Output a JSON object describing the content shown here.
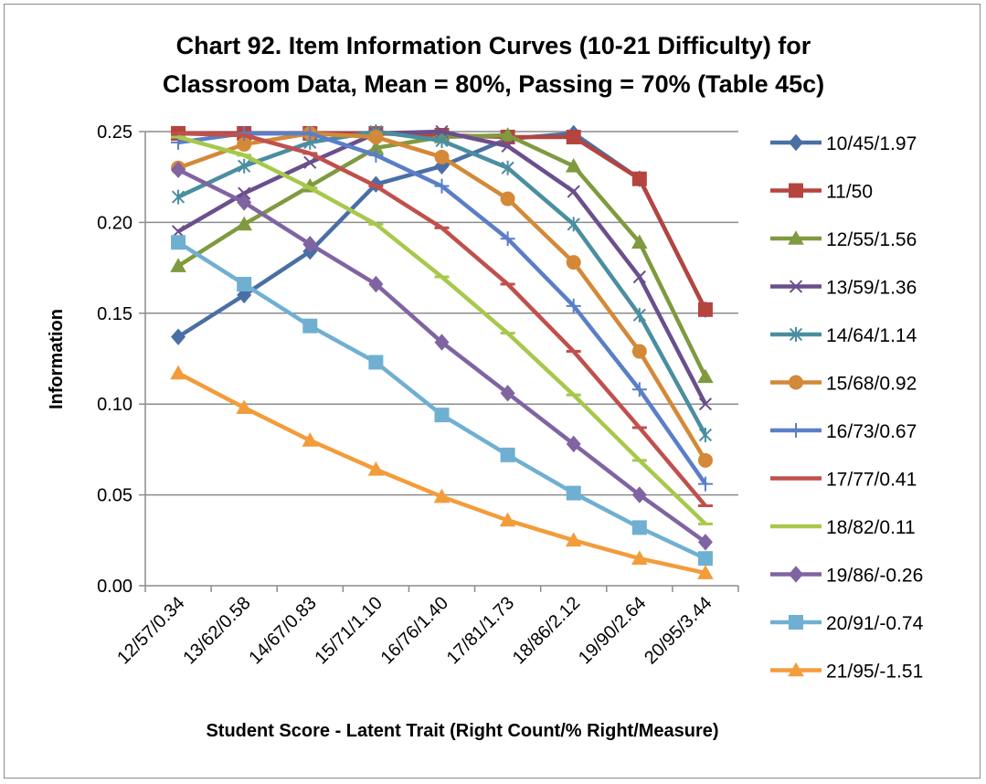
{
  "chart_data": {
    "type": "line",
    "title": "Chart 92. Item Information Curves (10-21 Difficulty) for",
    "subtitle": "Classroom Data, Mean = 80%, Passing = 70% (Table 45c)",
    "xlabel": "Student Score - Latent Trait (Right Count/% Right/Measure)",
    "ylabel": "Information",
    "ylim": [
      0,
      0.25
    ],
    "yticks": [
      "0.00",
      "0.05",
      "0.10",
      "0.15",
      "0.20",
      "0.25"
    ],
    "grid": true,
    "legend_position": "right",
    "categories": [
      "12/57/0.34",
      "13/62/0.58",
      "14/67/0.83",
      "15/71/1.10",
      "16/76/1.40",
      "17/81/1.73",
      "18/86/2.12",
      "19/90/2.64",
      "20/95/3.44"
    ],
    "series": [
      {
        "name": "10/45/1.97",
        "color": "#4a6fa5",
        "marker": "diamond",
        "values": [
          0.137,
          0.16,
          0.184,
          0.221,
          0.231,
          0.246,
          0.249,
          0.224,
          0.152
        ]
      },
      {
        "name": "11/50",
        "color": "#b5443f",
        "marker": "square",
        "values": [
          0.249,
          0.249,
          0.249,
          0.249,
          0.248,
          0.247,
          0.247,
          0.224,
          0.152
        ]
      },
      {
        "name": "12/55/1.56",
        "color": "#7f9a3f",
        "marker": "triangle",
        "values": [
          0.176,
          0.199,
          0.22,
          0.241,
          0.247,
          0.248,
          0.231,
          0.189,
          0.115
        ]
      },
      {
        "name": "13/59/1.36",
        "color": "#6b4f8c",
        "marker": "x",
        "values": [
          0.195,
          0.216,
          0.233,
          0.249,
          0.25,
          0.242,
          0.217,
          0.17,
          0.1
        ]
      },
      {
        "name": "14/64/1.14",
        "color": "#4a8ea0",
        "marker": "star",
        "values": [
          0.214,
          0.231,
          0.244,
          0.25,
          0.245,
          0.23,
          0.199,
          0.149,
          0.083
        ]
      },
      {
        "name": "15/68/0.92",
        "color": "#d38937",
        "marker": "circle",
        "values": [
          0.23,
          0.243,
          0.249,
          0.247,
          0.236,
          0.213,
          0.178,
          0.129,
          0.069
        ]
      },
      {
        "name": "16/73/0.67",
        "color": "#5a7fc7",
        "marker": "plus",
        "values": [
          0.244,
          0.249,
          0.249,
          0.237,
          0.22,
          0.191,
          0.154,
          0.108,
          0.056
        ]
      },
      {
        "name": "17/77/0.41",
        "color": "#c0504d",
        "marker": "dash",
        "values": [
          0.249,
          0.248,
          0.238,
          0.22,
          0.197,
          0.166,
          0.129,
          0.087,
          0.044
        ]
      },
      {
        "name": "18/82/0.11",
        "color": "#a8c84c",
        "marker": "dash",
        "values": [
          0.247,
          0.237,
          0.219,
          0.199,
          0.17,
          0.139,
          0.105,
          0.069,
          0.034
        ]
      },
      {
        "name": "19/86/-0.26",
        "color": "#8064a2",
        "marker": "diamond",
        "values": [
          0.229,
          0.211,
          0.188,
          0.166,
          0.134,
          0.106,
          0.078,
          0.05,
          0.024
        ]
      },
      {
        "name": "20/91/-0.74",
        "color": "#6fb0d2",
        "marker": "square",
        "values": [
          0.189,
          0.166,
          0.143,
          0.123,
          0.094,
          0.072,
          0.051,
          0.032,
          0.015
        ]
      },
      {
        "name": "21/95/-1.51",
        "color": "#f39c3a",
        "marker": "triangle",
        "values": [
          0.117,
          0.098,
          0.08,
          0.064,
          0.049,
          0.036,
          0.025,
          0.015,
          0.007
        ]
      }
    ]
  }
}
